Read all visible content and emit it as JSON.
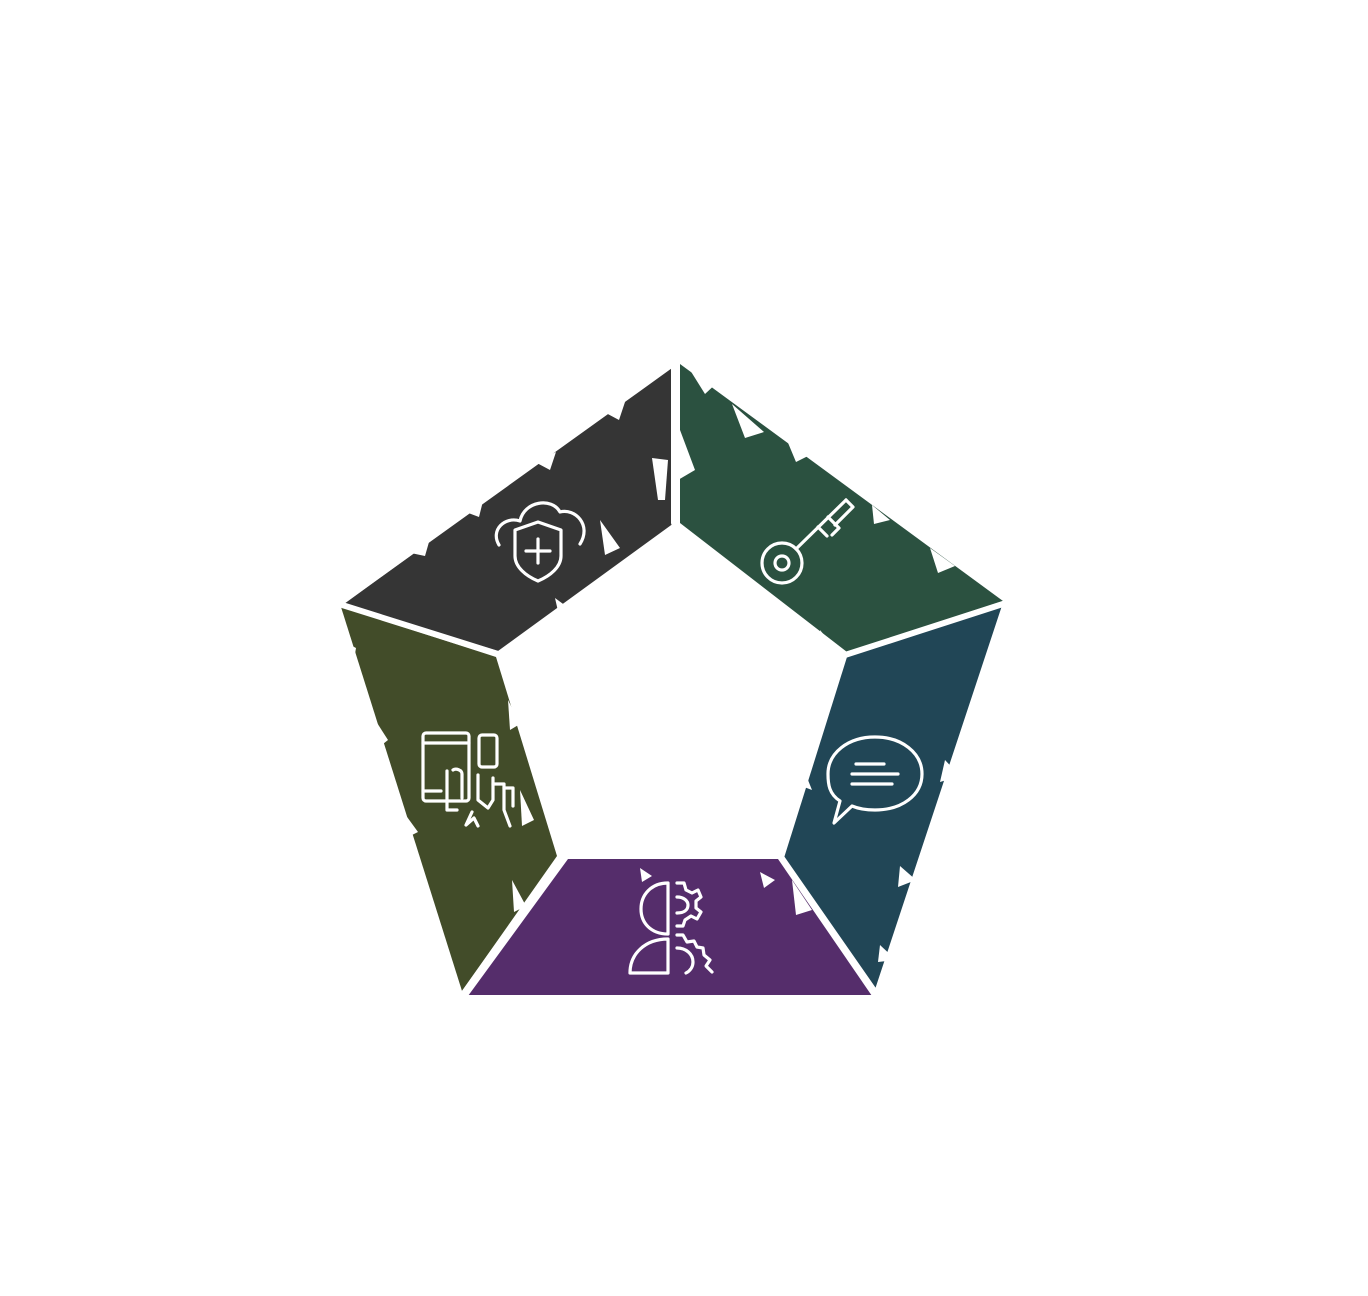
{
  "diagram": {
    "type": "pentagon-cycle",
    "background_color": "#ffffff",
    "segments": [
      {
        "id": "top-left",
        "color": "#353535",
        "icon": "cloud-shield-plus-icon"
      },
      {
        "id": "top-right",
        "color": "#2b5140",
        "icon": "key-icon"
      },
      {
        "id": "right",
        "color": "#214656",
        "icon": "speech-bubble-icon"
      },
      {
        "id": "bottom",
        "color": "#552d6b",
        "icon": "head-gears-icon"
      },
      {
        "id": "left",
        "color": "#424c29",
        "icon": "devices-touch-icon"
      }
    ]
  }
}
